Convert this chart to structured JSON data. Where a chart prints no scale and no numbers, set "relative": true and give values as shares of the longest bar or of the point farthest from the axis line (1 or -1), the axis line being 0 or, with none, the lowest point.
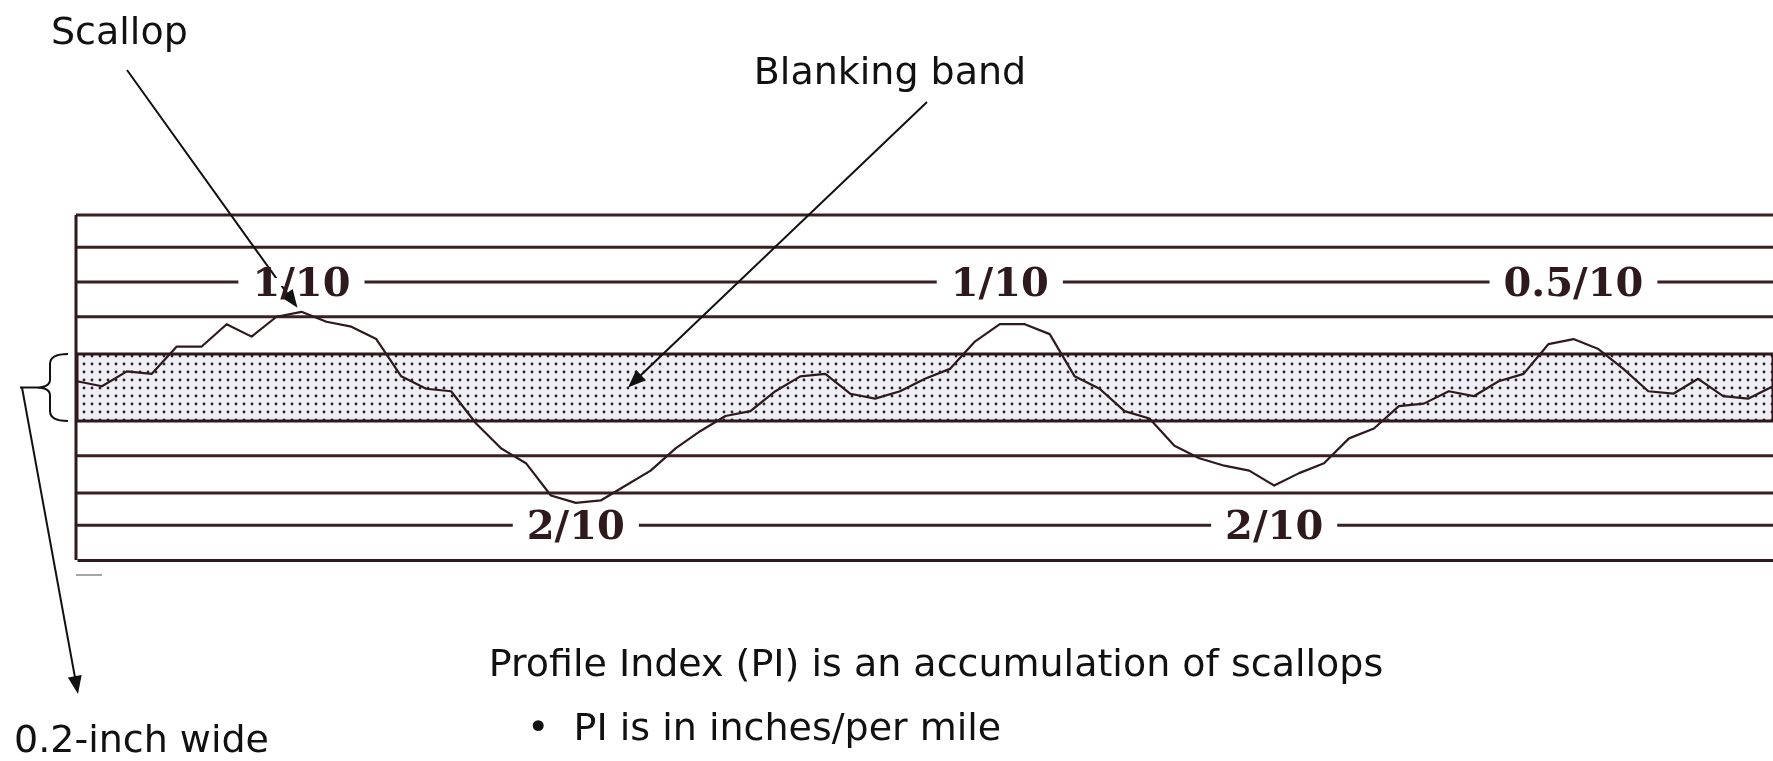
{
  "chart_data": {
    "type": "line",
    "relative": true,
    "categories": [
      null,
      null,
      null,
      null,
      null,
      null,
      null,
      null,
      null,
      null,
      null,
      null,
      null,
      null,
      null,
      null,
      null,
      null,
      null,
      null,
      null,
      null,
      null,
      null,
      null,
      null,
      null,
      null,
      null,
      null,
      null,
      null,
      null,
      null,
      null,
      null,
      null,
      null,
      null,
      null,
      null,
      null,
      null,
      null,
      null,
      null,
      null,
      null,
      null,
      null,
      null,
      null,
      null,
      null,
      null,
      null,
      null,
      null,
      null,
      null,
      null,
      null,
      null,
      null,
      null,
      null,
      null,
      null,
      null
    ],
    "series": [
      {
        "color": "#2e1a1c",
        "values": [
          0.72,
          0.7,
          0.76,
          0.75,
          0.86,
          0.86,
          0.95,
          0.9,
          0.98,
          1,
          0.96,
          0.94,
          0.89,
          0.74,
          0.69,
          0.68,
          0.55,
          0.45,
          0.39,
          0.26,
          0.23,
          0.24,
          0.3,
          0.36,
          0.45,
          0.52,
          0.58,
          0.6,
          0.68,
          0.74,
          0.75,
          0.67,
          0.65,
          0.68,
          0.73,
          0.77,
          0.88,
          0.95,
          0.95,
          0.91,
          0.74,
          0.69,
          0.6,
          0.57,
          0.46,
          0.41,
          0.38,
          0.36,
          0.3,
          0.35,
          0.39,
          0.49,
          0.53,
          0.62,
          0.63,
          0.68,
          0.66,
          0.72,
          0.75,
          0.87,
          0.89,
          0.85,
          0.77,
          0.68,
          0.67,
          0.73,
          0.66,
          0.65,
          0.7
        ]
      }
    ],
    "marker": "none",
    "line_style": "solid",
    "bands": [
      {
        "axis": "y",
        "from": 0.56,
        "to": 0.83,
        "label": "Blanking band"
      }
    ],
    "ref_lines": [
      {
        "axis": "y",
        "value": 1.39,
        "color": "#3b1f22"
      },
      {
        "axis": "y",
        "value": 1.26,
        "color": "#3b1f22"
      },
      {
        "axis": "y",
        "value": 1.12,
        "color": "#3b1f22"
      },
      {
        "axis": "y",
        "value": 0.98,
        "color": "#3b1f22"
      },
      {
        "axis": "y",
        "value": 0.42,
        "color": "#3b1f22"
      },
      {
        "axis": "y",
        "value": 0.27,
        "color": "#3b1f22"
      },
      {
        "axis": "y",
        "value": 0.14,
        "color": "#3b1f22"
      }
    ],
    "annotations": [
      "Scallop",
      {
        "text": "1/10",
        "y": 1.12
      },
      {
        "text": "2/10",
        "y": 0.14
      },
      {
        "text": "1/10",
        "y": 1.12
      },
      {
        "text": "2/10",
        "y": 0.14
      },
      {
        "text": "0.5/10",
        "y": 1.12
      },
      "0.2-inch wide",
      "Profile Index (PI) is an accumulation of scallops",
      "•  PI is in inches/per mile"
    ]
  }
}
